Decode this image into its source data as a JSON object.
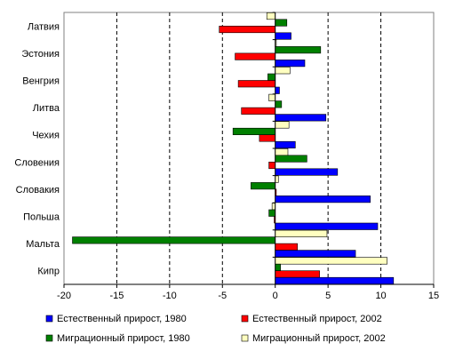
{
  "chart_data": {
    "type": "bar",
    "orientation": "horizontal",
    "categories": [
      "Латвия",
      "Эстония",
      "Венгрия",
      "Литва",
      "Чехия",
      "Словения",
      "Словакия",
      "Польша",
      "Мальта",
      "Кипр"
    ],
    "series": [
      {
        "name": "Естественный прирост, 1980",
        "color": "#0000ff",
        "values": [
          1.5,
          2.8,
          0.4,
          4.8,
          1.9,
          5.9,
          9.0,
          9.7,
          7.6,
          11.2
        ]
      },
      {
        "name": "Естественный прирост, 2002",
        "color": "#ff0000",
        "values": [
          -5.3,
          -3.8,
          -3.5,
          -3.2,
          -1.5,
          -0.6,
          0.1,
          -0.1,
          2.1,
          4.2
        ]
      },
      {
        "name": "Миграционный прирост, 1980",
        "color": "#008000",
        "values": [
          1.1,
          4.3,
          -0.7,
          0.6,
          -4.0,
          3.0,
          -2.3,
          -0.6,
          -19.2,
          0.5
        ]
      },
      {
        "name": "Миграционный прирост, 2002",
        "color": "#ffffc0",
        "values": [
          -0.8,
          0.1,
          1.4,
          -0.6,
          1.3,
          1.2,
          0.3,
          -0.3,
          4.9,
          10.6
        ]
      }
    ],
    "bar_order_top_to_bottom": [
      "Миграционный прирост, 2002",
      "Миграционный прирост, 1980",
      "Естественный прирост, 2002",
      "Естественный прирост, 1980"
    ],
    "xlim": [
      -20,
      15
    ],
    "xticks": [
      -20,
      -15,
      -10,
      -5,
      0,
      5,
      10,
      15
    ],
    "grid": "vertical dashed",
    "legend_position": "bottom",
    "title": "",
    "xlabel": "",
    "ylabel": ""
  }
}
